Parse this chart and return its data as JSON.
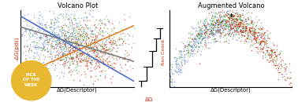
{
  "title_left": "Volcano Plot",
  "title_right": "Augmented Volcano",
  "ylabel_left": "-ΔG(pds)",
  "xlabel_left": "ΔG(Descriptor)",
  "xlabel_right": "ΔG(Descriptor)",
  "ylabel_right_rxn": "Rxn Coord.",
  "xlabel_right_rxn": "ΔG",
  "colors": [
    "#6688dd",
    "#55aa44",
    "#cc3311"
  ],
  "badge_text": "PICK\nOF THE\nWEEK",
  "badge_color": "#e8b830",
  "bg_color": "#ffffff",
  "seed": 42,
  "n_points": 500,
  "line_colors": [
    "#e07820",
    "#4466cc",
    "#777777"
  ],
  "line_slopes": [
    0.65,
    -0.85,
    -0.45
  ],
  "line_intercepts": [
    0.15,
    0.92,
    0.78
  ]
}
